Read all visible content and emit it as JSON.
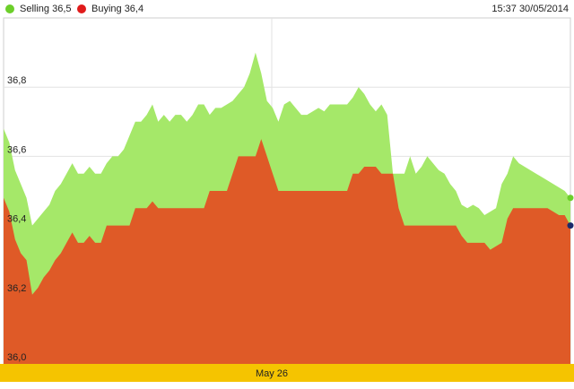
{
  "legend": {
    "selling_label": "Selling 36,5",
    "buying_label": "Buying 36,4",
    "selling_color": "#a5e869",
    "buying_color": "#df5a27",
    "selling_dot_color": "#6ccf2a",
    "buying_dot_color": "#e01b1b"
  },
  "timestamp": "15:37 30/05/2014",
  "date_band": {
    "label": "May 26",
    "color": "#f5c400"
  },
  "chart_data": {
    "type": "area",
    "ylim": [
      36.0,
      37.0
    ],
    "ytick_values": [
      36.0,
      36.2,
      36.4,
      36.6,
      36.8
    ],
    "ytick_labels": [
      "36,0",
      "36,2",
      "36,4",
      "36,6",
      "36,8"
    ],
    "grid": true,
    "legend_position": "top-left",
    "x": [
      0,
      1,
      2,
      3,
      4,
      5,
      6,
      7,
      8,
      9,
      10,
      11,
      12,
      13,
      14,
      15,
      16,
      17,
      18,
      19,
      20,
      21,
      22,
      23,
      24,
      25,
      26,
      27,
      28,
      29,
      30,
      31,
      32,
      33,
      34,
      35,
      36,
      37,
      38,
      39,
      40,
      41,
      42,
      43,
      44,
      45,
      46,
      47,
      48,
      49,
      50,
      51,
      52,
      53,
      54,
      55,
      56,
      57,
      58,
      59,
      60,
      61,
      62,
      63,
      64,
      65,
      66,
      67,
      68,
      69,
      70,
      71,
      72,
      73,
      74,
      75,
      76,
      77,
      78,
      79,
      80,
      81,
      82,
      83,
      84,
      85,
      86,
      87,
      88,
      89,
      90,
      91,
      92,
      93,
      94,
      95,
      96,
      97,
      98,
      99
    ],
    "series": [
      {
        "name": "Selling 36,5",
        "values": [
          36.68,
          36.64,
          36.56,
          36.52,
          36.48,
          36.4,
          36.42,
          36.44,
          36.46,
          36.5,
          36.52,
          36.55,
          36.58,
          36.55,
          36.55,
          36.57,
          36.55,
          36.55,
          36.58,
          36.6,
          36.6,
          36.62,
          36.66,
          36.7,
          36.7,
          36.72,
          36.75,
          36.7,
          36.72,
          36.7,
          36.72,
          36.72,
          36.7,
          36.72,
          36.75,
          36.75,
          36.72,
          36.74,
          36.74,
          36.75,
          36.76,
          36.78,
          36.8,
          36.84,
          36.9,
          36.84,
          36.76,
          36.74,
          36.7,
          36.75,
          36.76,
          36.74,
          36.72,
          36.72,
          36.73,
          36.74,
          36.73,
          36.75,
          36.75,
          36.75,
          36.75,
          36.77,
          36.8,
          36.78,
          36.75,
          36.73,
          36.75,
          36.72,
          36.55,
          36.55,
          36.55,
          36.6,
          36.55,
          36.57,
          36.6,
          36.58,
          36.56,
          36.55,
          36.52,
          36.5,
          36.46,
          36.45,
          36.46,
          36.45,
          36.43,
          36.44,
          36.45,
          36.52,
          36.55,
          36.6,
          36.58,
          36.57,
          36.56,
          36.55,
          36.54,
          36.53,
          36.52,
          36.51,
          36.5,
          36.48
        ],
        "color": "#a5e869"
      },
      {
        "name": "Buying 36,4",
        "values": [
          36.48,
          36.44,
          36.36,
          36.32,
          36.3,
          36.2,
          36.22,
          36.25,
          36.27,
          36.3,
          36.32,
          36.35,
          36.38,
          36.35,
          36.35,
          36.37,
          36.35,
          36.35,
          36.4,
          36.4,
          36.4,
          36.4,
          36.4,
          36.45,
          36.45,
          36.45,
          36.47,
          36.45,
          36.45,
          36.45,
          36.45,
          36.45,
          36.45,
          36.45,
          36.45,
          36.45,
          36.5,
          36.5,
          36.5,
          36.5,
          36.55,
          36.6,
          36.6,
          36.6,
          36.6,
          36.65,
          36.6,
          36.55,
          36.5,
          36.5,
          36.5,
          36.5,
          36.5,
          36.5,
          36.5,
          36.5,
          36.5,
          36.5,
          36.5,
          36.5,
          36.5,
          36.55,
          36.55,
          36.57,
          36.57,
          36.57,
          36.55,
          36.55,
          36.55,
          36.45,
          36.4,
          36.4,
          36.4,
          36.4,
          36.4,
          36.4,
          36.4,
          36.4,
          36.4,
          36.4,
          36.37,
          36.35,
          36.35,
          36.35,
          36.35,
          36.33,
          36.34,
          36.35,
          36.42,
          36.45,
          36.45,
          36.45,
          36.45,
          36.45,
          36.45,
          36.45,
          36.44,
          36.43,
          36.43,
          36.4
        ],
        "color": "#df5a27"
      }
    ]
  }
}
